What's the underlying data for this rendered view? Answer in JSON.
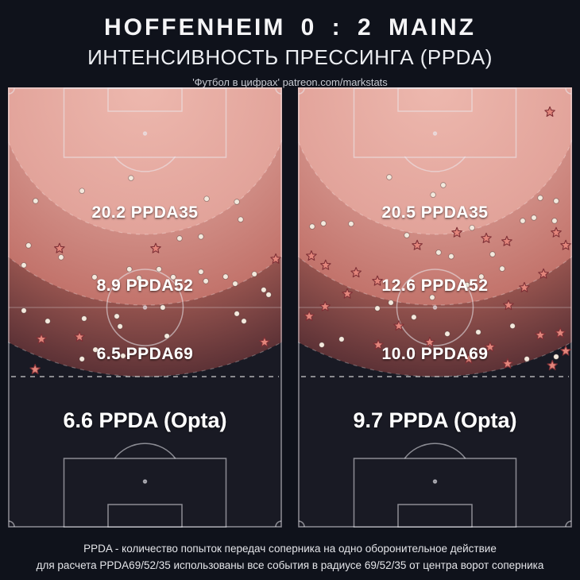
{
  "header": {
    "title": "HOFFENHEIM 0 : 2 MAINZ",
    "subtitle": "ИНТЕНСИВНОСТЬ ПРЕССИНГА (PPDA)",
    "credit": "'Футбол в цифрах' patreon.com/markstats"
  },
  "pitches": [
    {
      "ppda35_label": "20.2 PPDA35",
      "ppda52_label": "8.9 PPDA52",
      "ppda69_label": "6.5 PPDA69",
      "opta_label": "6.6 PPDA (Opta)",
      "dots": [
        [
          10.1,
          25.8
        ],
        [
          27.0,
          23.5
        ],
        [
          44.9,
          20.6
        ],
        [
          72.5,
          25.3
        ],
        [
          83.5,
          26.0
        ],
        [
          84.9,
          30.0
        ],
        [
          70.4,
          33.9
        ],
        [
          62.6,
          34.3
        ],
        [
          7.5,
          35.9
        ],
        [
          19.4,
          38.6
        ],
        [
          5.8,
          40.4
        ],
        [
          31.6,
          43.1
        ],
        [
          44.3,
          41.3
        ],
        [
          47.8,
          43.3
        ],
        [
          55.1,
          41.3
        ],
        [
          60.3,
          43.1
        ],
        [
          70.4,
          41.9
        ],
        [
          72.2,
          44.0
        ],
        [
          79.4,
          43.0
        ],
        [
          82.9,
          44.6
        ],
        [
          89.9,
          42.4
        ],
        [
          93.3,
          46.0
        ],
        [
          95.1,
          47.1
        ],
        [
          5.8,
          50.7
        ],
        [
          14.5,
          53.1
        ],
        [
          27.8,
          52.5
        ],
        [
          39.7,
          52.0
        ],
        [
          40.9,
          54.3
        ],
        [
          56.5,
          50.0
        ],
        [
          83.5,
          51.4
        ],
        [
          86.1,
          53.1
        ],
        [
          58.0,
          56.5
        ],
        [
          31.9,
          59.6
        ],
        [
          42.0,
          61.0
        ],
        [
          27.0,
          61.7
        ]
      ],
      "stars": [
        [
          18.8,
          36.6
        ],
        [
          53.9,
          36.6
        ],
        [
          97.7,
          39.0
        ],
        [
          12.2,
          57.2
        ],
        [
          26.1,
          56.7
        ],
        [
          9.9,
          64.1
        ],
        [
          93.6,
          57.9
        ]
      ]
    },
    {
      "ppda35_label": "20.5 PPDA35",
      "ppda52_label": "12.6 PPDA52",
      "ppda69_label": "10.0 PPDA69",
      "opta_label": "9.7 PPDA (Opta)",
      "dots": [
        [
          33.3,
          20.4
        ],
        [
          53.0,
          22.2
        ],
        [
          49.3,
          24.4
        ],
        [
          88.4,
          25.1
        ],
        [
          94.2,
          25.8
        ],
        [
          82.0,
          30.3
        ],
        [
          63.5,
          31.9
        ],
        [
          5.2,
          31.6
        ],
        [
          9.3,
          30.9
        ],
        [
          19.4,
          31.0
        ],
        [
          39.7,
          33.6
        ],
        [
          51.3,
          37.5
        ],
        [
          55.9,
          38.4
        ],
        [
          71.0,
          37.9
        ],
        [
          74.5,
          41.2
        ],
        [
          66.9,
          43.0
        ],
        [
          61.7,
          44.9
        ],
        [
          49.0,
          47.7
        ],
        [
          33.9,
          48.9
        ],
        [
          29.0,
          50.2
        ],
        [
          42.3,
          52.2
        ],
        [
          54.5,
          56.0
        ],
        [
          65.8,
          55.6
        ],
        [
          78.3,
          54.2
        ],
        [
          83.5,
          61.7
        ],
        [
          94.2,
          61.2
        ],
        [
          8.7,
          58.5
        ],
        [
          15.9,
          57.2
        ],
        [
          86.1,
          29.6
        ],
        [
          93.6,
          30.3
        ]
      ],
      "stars": [
        [
          91.9,
          5.6
        ],
        [
          58.0,
          33.0
        ],
        [
          43.5,
          35.9
        ],
        [
          68.7,
          34.3
        ],
        [
          76.2,
          35.0
        ],
        [
          94.2,
          33.0
        ],
        [
          97.7,
          35.9
        ],
        [
          4.9,
          38.3
        ],
        [
          10.1,
          40.4
        ],
        [
          21.2,
          42.1
        ],
        [
          29.0,
          44.0
        ],
        [
          18.0,
          46.9
        ],
        [
          9.9,
          49.8
        ],
        [
          4.1,
          52.0
        ],
        [
          36.8,
          54.2
        ],
        [
          48.1,
          57.9
        ],
        [
          29.3,
          58.5
        ],
        [
          70.1,
          59.0
        ],
        [
          62.3,
          61.7
        ],
        [
          76.5,
          62.8
        ],
        [
          88.4,
          56.3
        ],
        [
          95.7,
          55.8
        ],
        [
          97.7,
          59.9
        ],
        [
          92.8,
          63.2
        ],
        [
          76.8,
          49.5
        ],
        [
          82.6,
          45.5
        ],
        [
          89.6,
          42.4
        ]
      ]
    }
  ],
  "footer": {
    "line1": "PPDA - количество попыток передач соперника на одно оборонительное действие",
    "line2": "для расчета PPDA69/52/35 использованы все события в радиусе 69/52/35 от центра ворот соперника"
  },
  "colors": {
    "background": "#0f121b",
    "zone35": "#e2a49c",
    "zone52": "#c87f77",
    "zone69": "#9b5751",
    "zone69_edge": "#5d3236",
    "pitch_base": "#191a24",
    "pass_dot": "#f4e9dd",
    "action_star": "#e2857b",
    "star_outline": "#7e3036"
  },
  "chart_data": {
    "type": "scatter",
    "title": "ИНТЕНСИВНОСТЬ ПРЕССИНГА (PPDA)",
    "match": {
      "home": "HOFFENHEIM",
      "score": "0 : 2",
      "away": "MAINZ"
    },
    "panels": [
      {
        "position": "left",
        "PPDA35": 20.2,
        "PPDA52": 8.9,
        "PPDA69": 6.5,
        "PPDA_Opta": 6.6
      },
      {
        "position": "right",
        "PPDA35": 20.5,
        "PPDA52": 12.6,
        "PPDA69": 10.0,
        "PPDA_Opta": 9.7
      }
    ],
    "zone_radii_m": [
      35,
      52,
      69
    ],
    "legend_position": "none",
    "grid": false
  }
}
